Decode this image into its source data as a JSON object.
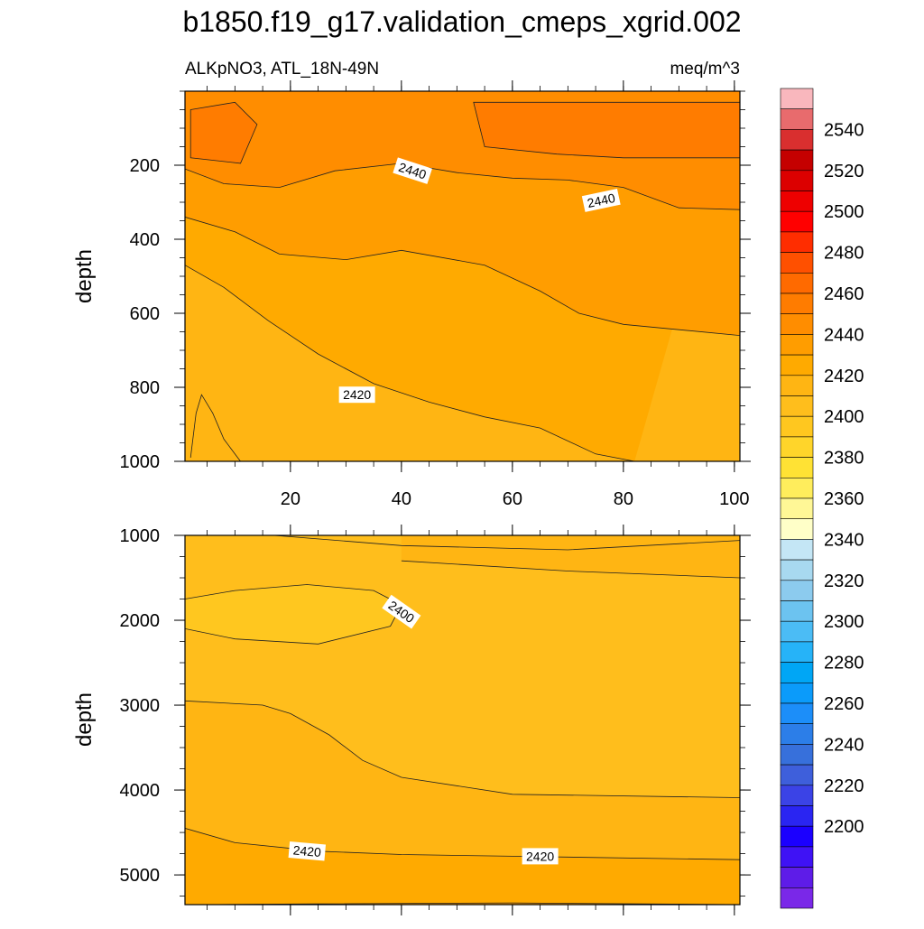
{
  "title": "b1850.f19_g17.validation_cmeps_xgrid.002",
  "chart_data": [
    {
      "type": "contour",
      "panel": "upper",
      "left_label": "ALKpNO3, ATL_18N-49N",
      "right_label": "meq/m^3",
      "ylabel": "depth",
      "xlim": [
        1,
        101
      ],
      "ylim": [
        1000,
        0
      ],
      "x_ticks": [
        20,
        40,
        60,
        80,
        100
      ],
      "y_ticks": [
        200,
        400,
        600,
        800,
        1000
      ],
      "contour_labels": [
        {
          "text": "2440",
          "x": 42,
          "y": 215,
          "angle": 18
        },
        {
          "text": "2440",
          "x": 76,
          "y": 295,
          "angle": -12
        },
        {
          "text": "2420",
          "x": 32,
          "y": 820,
          "angle": 0
        }
      ],
      "contour_lines": [
        {
          "level": 2450,
          "points": [
            [
              2,
              50
            ],
            [
              10,
              30
            ],
            [
              14,
              90
            ],
            [
              11,
              195
            ],
            [
              2,
              180
            ]
          ]
        },
        {
          "level": 2450,
          "points": [
            [
              53,
              30
            ],
            [
              101,
              30
            ],
            [
              101,
              180
            ],
            [
              80,
              180
            ],
            [
              68,
              170
            ],
            [
              55,
              150
            ]
          ]
        },
        {
          "level": 2440,
          "points": [
            [
              1,
              210
            ],
            [
              8,
              250
            ],
            [
              18,
              260
            ],
            [
              28,
              215
            ],
            [
              40,
              195
            ],
            [
              50,
              220
            ],
            [
              60,
              235
            ],
            [
              70,
              240
            ],
            [
              80,
              260
            ],
            [
              90,
              315
            ],
            [
              101,
              320
            ]
          ]
        },
        {
          "level": 2430,
          "points": [
            [
              1,
              340
            ],
            [
              10,
              380
            ],
            [
              18,
              440
            ],
            [
              30,
              455
            ],
            [
              40,
              430
            ],
            [
              55,
              470
            ],
            [
              65,
              540
            ],
            [
              72,
              600
            ],
            [
              80,
              630
            ],
            [
              101,
              660
            ]
          ]
        },
        {
          "level": 2420,
          "points": [
            [
              1,
              470
            ],
            [
              8,
              530
            ],
            [
              16,
              620
            ],
            [
              25,
              710
            ],
            [
              35,
              790
            ],
            [
              45,
              840
            ],
            [
              55,
              880
            ],
            [
              65,
              910
            ],
            [
              75,
              980
            ],
            [
              82,
              1000
            ]
          ]
        },
        {
          "level": 2410,
          "points": [
            [
              2,
              990
            ],
            [
              3,
              870
            ],
            [
              4,
              820
            ],
            [
              6,
              870
            ],
            [
              8,
              940
            ],
            [
              11,
              1000
            ]
          ]
        }
      ],
      "fill_levels": [
        {
          "region": "top-left and top-right cores",
          "value": 2455
        },
        {
          "region": "upper band",
          "value": 2445
        },
        {
          "region": "band",
          "value": 2435
        },
        {
          "region": "band",
          "value": 2425
        },
        {
          "region": "lower-left",
          "value": 2415
        },
        {
          "region": "bottom-left corner",
          "value": 2405
        }
      ]
    },
    {
      "type": "contour",
      "panel": "lower",
      "ylabel": "depth",
      "xlim": [
        1,
        101
      ],
      "ylim": [
        5350,
        1000
      ],
      "y_ticks": [
        1000,
        2000,
        3000,
        4000,
        5000
      ],
      "contour_labels": [
        {
          "text": "2400",
          "x": 40,
          "y": 1900,
          "angle": 35
        },
        {
          "text": "2420",
          "x": 23,
          "y": 4720,
          "angle": 5
        },
        {
          "text": "2420",
          "x": 65,
          "y": 4780,
          "angle": 0
        }
      ],
      "contour_lines": [
        {
          "level": 2410,
          "points": [
            [
              17,
              1000
            ],
            [
              40,
              1120
            ],
            [
              70,
              1170
            ],
            [
              101,
              1060
            ]
          ]
        },
        {
          "level": 2410,
          "points": [
            [
              40,
              1300
            ],
            [
              70,
              1420
            ],
            [
              101,
              1500
            ]
          ]
        },
        {
          "level": 2400,
          "points": [
            [
              1,
              1750
            ],
            [
              10,
              1650
            ],
            [
              23,
              1580
            ],
            [
              35,
              1650
            ],
            [
              40,
              1820
            ],
            [
              38,
              2070
            ],
            [
              25,
              2280
            ],
            [
              10,
              2220
            ],
            [
              1,
              2100
            ]
          ]
        },
        {
          "level": 2410,
          "points": [
            [
              1,
              2950
            ],
            [
              15,
              3000
            ],
            [
              20,
              3100
            ],
            [
              27,
              3350
            ],
            [
              33,
              3650
            ],
            [
              40,
              3850
            ],
            [
              60,
              4050
            ],
            [
              101,
              4090
            ]
          ]
        },
        {
          "level": 2420,
          "points": [
            [
              1,
              4450
            ],
            [
              10,
              4620
            ],
            [
              25,
              4720
            ],
            [
              40,
              4760
            ],
            [
              60,
              4780
            ],
            [
              101,
              4820
            ]
          ]
        },
        {
          "level": 2430,
          "points": [
            [
              5,
              5350
            ],
            [
              25,
              5340
            ],
            [
              60,
              5330
            ],
            [
              101,
              5350
            ]
          ]
        }
      ],
      "fill_levels": [
        {
          "region": "top band",
          "value": 2405
        },
        {
          "region": "top-right corner",
          "value": 2415
        },
        {
          "region": "upper-left lens",
          "value": 2395
        },
        {
          "region": "middle",
          "value": 2405
        },
        {
          "region": "lower band",
          "value": 2415
        },
        {
          "region": "bottom band",
          "value": 2425
        }
      ]
    }
  ],
  "colorbar": {
    "labels": [
      "2540",
      "2520",
      "2500",
      "2480",
      "2460",
      "2440",
      "2420",
      "2400",
      "2380",
      "2360",
      "2340",
      "2320",
      "2300",
      "2280",
      "2260",
      "2240",
      "2220",
      "2200"
    ],
    "colors": [
      "#f9b7bd",
      "#e86b6d",
      "#d92f2f",
      "#c50000",
      "#dc0000",
      "#ee0000",
      "#ff0000",
      "#ff2d00",
      "#ff5000",
      "#ff6a00",
      "#ff7c00",
      "#ff8d00",
      "#ff9d00",
      "#ffaa00",
      "#ffb513",
      "#ffbe1c",
      "#ffc71f",
      "#ffd52a",
      "#ffe234",
      "#ffed5c",
      "#fff796",
      "#ffffc8",
      "#c4e6f5",
      "#a8d9f0",
      "#8ccbee",
      "#6cc3f0",
      "#4bbcf5",
      "#26b3f8",
      "#00a6f5",
      "#0b9bfa",
      "#1c8ef9",
      "#2c7ee8",
      "#3770db",
      "#3e5fdb",
      "#3b43e6",
      "#2a25f2",
      "#1b00ff",
      "#3f12f5",
      "#5e1ce8",
      "#7a28e8"
    ]
  }
}
